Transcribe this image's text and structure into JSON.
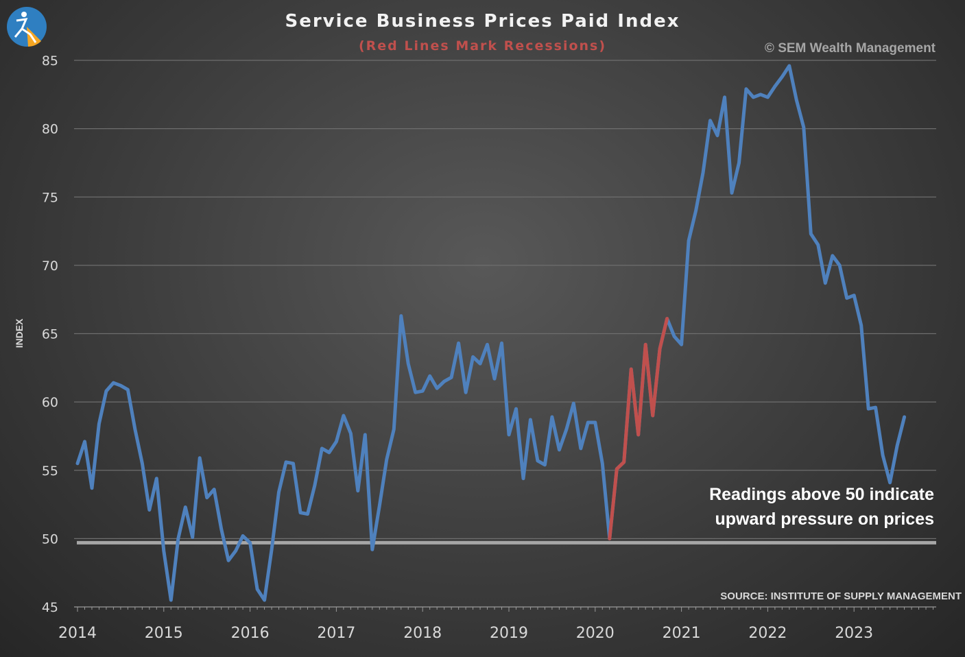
{
  "header": {
    "title": "Service Business Prices Paid Index",
    "subtitle": "(Red Lines Mark Recessions)",
    "copyright": "© SEM Wealth Management"
  },
  "logo": {
    "icon": "sem-logo-icon",
    "colors": [
      "#2f7fc1",
      "#f5a623"
    ]
  },
  "annotation": {
    "line1": "Readings above 50 indicate",
    "line2": "upward pressure on prices"
  },
  "source": "SOURCE:  INSTITUTE OF SUPPLY MANAGEMENT",
  "colors": {
    "series": "#4f81bd",
    "recession": "#c0504d",
    "threshold": "#a6a6a6",
    "grid": "#6e6e6e"
  },
  "chart_data": {
    "type": "line",
    "title": "Service Business Prices Paid Index",
    "subtitle": "(Red Lines Mark Recessions)",
    "xlabel": "",
    "ylabel": "INDEX",
    "ylim": [
      45,
      85
    ],
    "yticks": [
      45,
      50,
      55,
      60,
      65,
      70,
      75,
      80,
      85
    ],
    "xticks": [
      "2014",
      "2015",
      "2016",
      "2017",
      "2018",
      "2019",
      "2020",
      "2021",
      "2022",
      "2023"
    ],
    "grid": true,
    "x_start": "2014-01",
    "frequency": "monthly",
    "reference_line": {
      "y": 49.7
    },
    "recession_range": [
      "2020-03",
      "2020-11"
    ],
    "values": [
      55.5,
      57.1,
      53.7,
      58.4,
      60.8,
      61.4,
      61.2,
      60.9,
      58.0,
      55.5,
      52.1,
      54.4,
      49.1,
      45.5,
      50.0,
      52.3,
      50.1,
      55.9,
      53.0,
      53.6,
      50.7,
      48.4,
      49.1,
      50.2,
      49.7,
      46.3,
      45.5,
      49.2,
      53.4,
      55.6,
      55.5,
      51.9,
      51.8,
      53.9,
      56.6,
      56.3,
      57.1,
      59.0,
      57.7,
      53.5,
      57.6,
      49.2,
      52.4,
      55.8,
      58.0,
      66.3,
      62.8,
      60.7,
      60.8,
      61.9,
      61.0,
      61.5,
      61.8,
      64.3,
      60.7,
      63.3,
      62.8,
      64.2,
      61.7,
      64.3,
      57.6,
      59.5,
      54.4,
      58.7,
      55.7,
      55.4,
      58.9,
      56.5,
      58.0,
      59.9,
      56.6,
      58.5,
      58.5,
      55.5,
      50.0,
      55.1,
      55.6,
      62.4,
      57.6,
      64.2,
      59.0,
      63.9,
      66.1,
      64.8,
      64.2,
      71.8,
      74.0,
      76.8,
      80.6,
      79.5,
      82.3,
      75.3,
      77.5,
      82.9,
      82.3,
      82.5,
      82.3,
      83.1,
      83.8,
      84.6,
      82.1,
      80.1,
      72.3,
      71.5,
      68.7,
      70.7,
      70.0,
      67.6,
      67.8,
      65.6,
      59.5,
      59.6,
      56.1,
      54.1,
      56.8,
      58.9
    ]
  }
}
